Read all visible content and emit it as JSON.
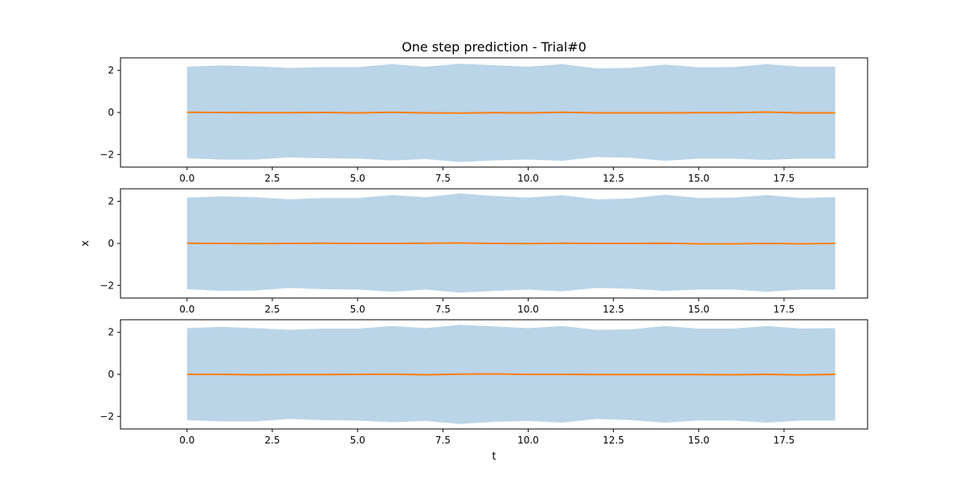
{
  "figure": {
    "title": "One step prediction - Trial#0",
    "colors": {
      "band": "#bad4e8",
      "line": "#ff7f0e",
      "mean_line": "#1f77b4",
      "axes": "#000000"
    }
  },
  "chart_data": [
    {
      "type": "area",
      "title": "One step prediction - Trial#0",
      "xlabel": "",
      "ylabel": "",
      "xlim": [
        -1.95,
        19.95
      ],
      "ylim": [
        -2.6,
        2.6
      ],
      "xticks": [
        0.0,
        2.5,
        5.0,
        7.5,
        10.0,
        12.5,
        15.0,
        17.5
      ],
      "xtick_labels": [
        "0.0",
        "2.5",
        "5.0",
        "7.5",
        "10.0",
        "12.5",
        "15.0",
        "17.5"
      ],
      "yticks": [
        -2,
        0,
        2
      ],
      "ytick_labels": [
        "−2",
        "0",
        "2"
      ],
      "x": [
        0,
        1,
        2,
        3,
        4,
        5,
        6,
        7,
        8,
        9,
        10,
        11,
        12,
        13,
        14,
        15,
        16,
        17,
        18,
        19
      ],
      "upper": [
        2.18,
        2.24,
        2.2,
        2.12,
        2.16,
        2.16,
        2.3,
        2.18,
        2.32,
        2.25,
        2.18,
        2.3,
        2.1,
        2.12,
        2.28,
        2.15,
        2.16,
        2.3,
        2.18,
        2.18
      ],
      "lower": [
        -2.18,
        -2.24,
        -2.24,
        -2.14,
        -2.18,
        -2.2,
        -2.28,
        -2.22,
        -2.36,
        -2.28,
        -2.24,
        -2.3,
        -2.12,
        -2.16,
        -2.3,
        -2.2,
        -2.2,
        -2.26,
        -2.2,
        -2.2
      ],
      "series": [
        {
          "values": [
            0.01,
            0.0,
            -0.01,
            -0.01,
            0.0,
            -0.02,
            0.01,
            -0.02,
            -0.03,
            -0.01,
            -0.02,
            0.01,
            -0.02,
            -0.02,
            -0.02,
            -0.01,
            -0.01,
            0.02,
            -0.02,
            -0.02
          ]
        }
      ]
    },
    {
      "type": "area",
      "title": "",
      "xlabel": "",
      "ylabel": "x",
      "xlim": [
        -1.95,
        19.95
      ],
      "ylim": [
        -2.6,
        2.6
      ],
      "xticks": [
        0.0,
        2.5,
        5.0,
        7.5,
        10.0,
        12.5,
        15.0,
        17.5
      ],
      "xtick_labels": [
        "0.0",
        "2.5",
        "5.0",
        "7.5",
        "10.0",
        "12.5",
        "15.0",
        "17.5"
      ],
      "yticks": [
        -2,
        0,
        2
      ],
      "ytick_labels": [
        "−2",
        "0",
        "2"
      ],
      "x": [
        0,
        1,
        2,
        3,
        4,
        5,
        6,
        7,
        8,
        9,
        10,
        11,
        12,
        13,
        14,
        15,
        16,
        17,
        18,
        19
      ],
      "upper": [
        2.18,
        2.24,
        2.2,
        2.1,
        2.16,
        2.16,
        2.3,
        2.2,
        2.38,
        2.26,
        2.18,
        2.3,
        2.1,
        2.14,
        2.32,
        2.16,
        2.18,
        2.3,
        2.16,
        2.2
      ],
      "lower": [
        -2.18,
        -2.26,
        -2.24,
        -2.12,
        -2.18,
        -2.2,
        -2.3,
        -2.2,
        -2.34,
        -2.26,
        -2.2,
        -2.28,
        -2.12,
        -2.16,
        -2.26,
        -2.2,
        -2.2,
        -2.3,
        -2.2,
        -2.2
      ],
      "series": [
        {
          "values": [
            0.01,
            0.0,
            -0.01,
            0.0,
            0.01,
            0.0,
            0.0,
            0.01,
            0.02,
            0.0,
            -0.01,
            0.01,
            0.0,
            0.0,
            0.01,
            -0.02,
            -0.02,
            0.0,
            -0.02,
            0.0
          ]
        }
      ]
    },
    {
      "type": "area",
      "title": "",
      "xlabel": "t",
      "ylabel": "",
      "xlim": [
        -1.95,
        19.95
      ],
      "ylim": [
        -2.6,
        2.6
      ],
      "xticks": [
        0.0,
        2.5,
        5.0,
        7.5,
        10.0,
        12.5,
        15.0,
        17.5
      ],
      "xtick_labels": [
        "0.0",
        "2.5",
        "5.0",
        "7.5",
        "10.0",
        "12.5",
        "15.0",
        "17.5"
      ],
      "yticks": [
        -2,
        0,
        2
      ],
      "ytick_labels": [
        "−2",
        "0",
        "2"
      ],
      "x": [
        0,
        1,
        2,
        3,
        4,
        5,
        6,
        7,
        8,
        9,
        10,
        11,
        12,
        13,
        14,
        15,
        16,
        17,
        18,
        19
      ],
      "upper": [
        2.2,
        2.26,
        2.2,
        2.12,
        2.18,
        2.18,
        2.3,
        2.2,
        2.36,
        2.28,
        2.2,
        2.3,
        2.12,
        2.14,
        2.3,
        2.18,
        2.18,
        2.3,
        2.18,
        2.2
      ],
      "lower": [
        -2.18,
        -2.24,
        -2.24,
        -2.12,
        -2.18,
        -2.2,
        -2.28,
        -2.22,
        -2.36,
        -2.26,
        -2.22,
        -2.3,
        -2.12,
        -2.18,
        -2.3,
        -2.2,
        -2.2,
        -2.3,
        -2.2,
        -2.2
      ],
      "series": [
        {
          "values": [
            0.0,
            0.0,
            -0.02,
            -0.01,
            -0.01,
            0.0,
            0.01,
            -0.02,
            0.01,
            0.02,
            0.0,
            0.0,
            -0.01,
            -0.01,
            -0.01,
            -0.01,
            -0.02,
            0.0,
            -0.03,
            0.0
          ]
        }
      ]
    }
  ]
}
